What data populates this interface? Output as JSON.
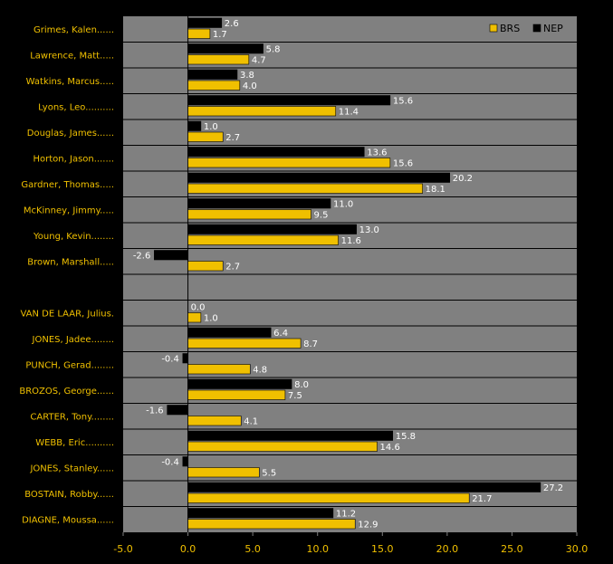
{
  "chart_data": {
    "type": "bar",
    "orientation": "horizontal",
    "categories": [
      "Grimes, Kalen......",
      "Lawrence, Matt.....",
      "Watkins, Marcus.....",
      "Lyons, Leo..........",
      "Douglas, James......",
      "Horton, Jason.......",
      "Gardner, Thomas.....",
      "McKinney, Jimmy.....",
      "Young, Kevin........",
      "Brown, Marshall.....",
      "",
      "VAN DE LAAR, Julius.",
      "JONES, Jadee........",
      "PUNCH, Gerad........",
      "BROZOS, George......",
      "CARTER, Tony........",
      "WEBB, Eric..........",
      "JONES, Stanley......",
      "BOSTAIN, Robby......",
      "DIAGNE, Moussa......"
    ],
    "series": [
      {
        "name": "NEP",
        "color": "#000000",
        "values": [
          2.6,
          5.8,
          3.8,
          15.6,
          1.0,
          13.6,
          20.2,
          11.0,
          13.0,
          -2.6,
          null,
          0.0,
          6.4,
          -0.4,
          8.0,
          -1.6,
          15.8,
          -0.4,
          27.2,
          11.2
        ],
        "labels": [
          "2.6",
          "5.8",
          "3.8",
          "15.6",
          "1.0",
          "13.6",
          "20.2",
          "11.0",
          "13.0",
          "-2.6",
          "",
          "0.0",
          "6.4",
          "-0.4",
          "8.0",
          "-1.6",
          "15.8",
          "-0.4",
          "27.2",
          "11.2"
        ]
      },
      {
        "name": "BRS",
        "color": "#f0c000",
        "values": [
          1.7,
          4.7,
          4.0,
          11.4,
          2.7,
          15.6,
          18.1,
          9.5,
          11.6,
          2.7,
          null,
          1.0,
          8.7,
          4.8,
          7.5,
          4.1,
          14.6,
          5.5,
          21.7,
          12.9
        ],
        "labels": [
          "1.7",
          "4.7",
          "4.0",
          "11.4",
          "2.7",
          "15.6",
          "18.1",
          "9.5",
          "11.6",
          "2.7",
          "",
          "1.0",
          "8.7",
          "4.8",
          "7.5",
          "4.1",
          "14.6",
          "5.5",
          "21.7",
          "12.9"
        ]
      }
    ],
    "xlim": [
      -5,
      30
    ],
    "xticks": [
      -5,
      0,
      5,
      10,
      15,
      20,
      25,
      30
    ],
    "xtick_labels": [
      "-5.0",
      "0.0",
      "5.0",
      "10.0",
      "15.0",
      "20.0",
      "25.0",
      "30.0"
    ],
    "legend": {
      "placement": "top-right",
      "entries": [
        "BRS",
        "NEP"
      ]
    },
    "plot_background": "#808080",
    "grid": "horizontal separators"
  }
}
